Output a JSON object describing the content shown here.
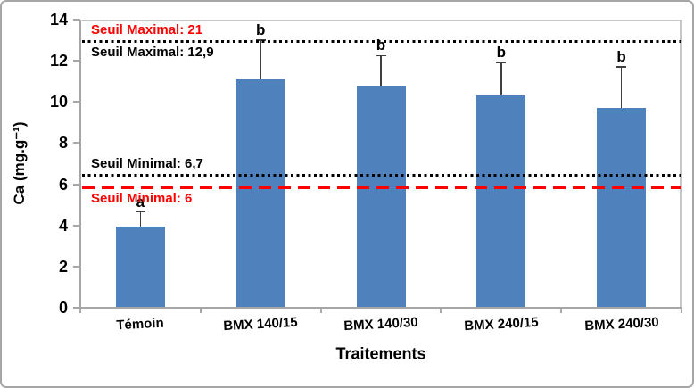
{
  "chart_data": {
    "type": "bar",
    "title": "",
    "xlabel": "Traitements",
    "ylabel": "Ca (mg.g⁻¹)",
    "ylim": [
      0,
      14
    ],
    "yticks": [
      0,
      2,
      4,
      6,
      8,
      10,
      12,
      14
    ],
    "grid": false,
    "legend": null,
    "categories": [
      "Témoin",
      "BMX 140/15",
      "BMX 140/30",
      "BMX 240/15",
      "BMX 240/30"
    ],
    "values": [
      3.95,
      11.1,
      10.8,
      10.3,
      9.7
    ],
    "error_plus": [
      0.7,
      1.9,
      1.45,
      1.6,
      2.0
    ],
    "significance_letters": [
      "a",
      "b",
      "b",
      "b",
      "b"
    ],
    "colors": {
      "bar": "#4f81bd",
      "error_bar": "#404040",
      "axis": "#a6a6a6",
      "plot_border": "#c6c6c6",
      "text": "#000000"
    },
    "reference_lines": [
      {
        "id": "seuil-maximal-21",
        "label": "Seuil Maximal: 21",
        "value": 21,
        "draw_line": false,
        "anchor_value": 12.95,
        "style": "none",
        "color": "#ff0000",
        "label_color": "#ff0000",
        "label_side": "above"
      },
      {
        "id": "seuil-maximal-12-9",
        "label": "Seuil Maximal: 12,9",
        "value": 12.9,
        "draw_line": true,
        "anchor_value": 12.95,
        "style": "dotted",
        "color": "#000000",
        "label_color": "#000000",
        "label_side": "below"
      },
      {
        "id": "seuil-minimal-6-7",
        "label": "Seuil Minimal: 6,7",
        "value": 6.7,
        "draw_line": true,
        "anchor_value": 6.45,
        "style": "dotted",
        "color": "#000000",
        "label_color": "#000000",
        "label_side": "above"
      },
      {
        "id": "seuil-minimal-6",
        "label": "Seuil Minimal: 6",
        "value": 6,
        "draw_line": true,
        "anchor_value": 5.85,
        "style": "dashed",
        "color": "#ff0000",
        "label_color": "#ff0000",
        "label_side": "below"
      }
    ]
  }
}
